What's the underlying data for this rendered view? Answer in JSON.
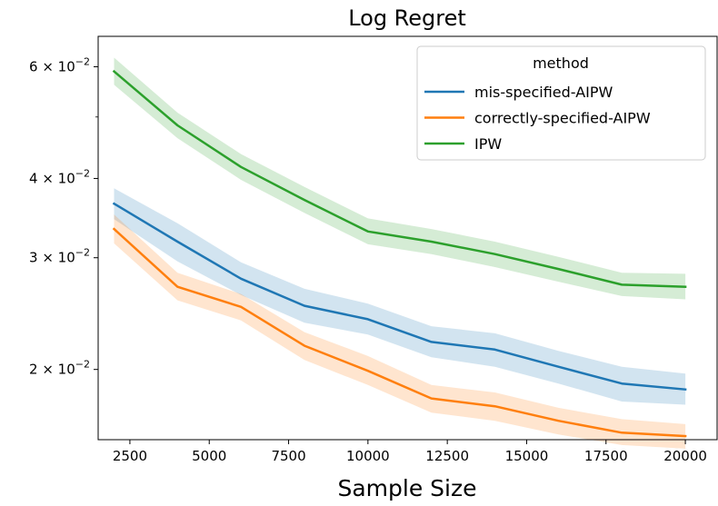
{
  "chart_data": {
    "type": "line",
    "title": "Log Regret",
    "xlabel": "Sample Size",
    "ylabel": "",
    "yscale": "log",
    "xlim": [
      1500,
      21000
    ],
    "ylim": [
      0.0155,
      0.067
    ],
    "x_ticks": [
      2500,
      5000,
      7500,
      10000,
      12500,
      15000,
      17500,
      20000
    ],
    "x_tick_labels": [
      "2500",
      "5000",
      "7500",
      "10000",
      "12500",
      "15000",
      "17500",
      "20000"
    ],
    "y_ticks": [
      {
        "value": 0.02,
        "mantissa": "2",
        "exponent": "−2"
      },
      {
        "value": 0.03,
        "mantissa": "3",
        "exponent": "−2"
      },
      {
        "value": 0.04,
        "mantissa": "4",
        "exponent": "−2"
      },
      {
        "value": 0.06,
        "mantissa": "6",
        "exponent": "−2"
      }
    ],
    "y_minor_ticks": [
      0.05
    ],
    "legend": {
      "title": "method",
      "position": "upper-right"
    },
    "x": [
      2000,
      4000,
      6000,
      8000,
      10000,
      12000,
      14000,
      16000,
      18000,
      20000
    ],
    "series": [
      {
        "name": "mis-specified-AIPW",
        "color": "#1f77b4",
        "values": [
          0.0365,
          0.0318,
          0.0278,
          0.0252,
          0.024,
          0.0221,
          0.0215,
          0.0202,
          0.019,
          0.0186
        ],
        "lower": [
          0.0345,
          0.0296,
          0.0262,
          0.0237,
          0.0227,
          0.0209,
          0.0202,
          0.019,
          0.0178,
          0.0176
        ],
        "upper": [
          0.0386,
          0.034,
          0.0295,
          0.0268,
          0.0254,
          0.0234,
          0.0228,
          0.0214,
          0.0202,
          0.0197
        ]
      },
      {
        "name": "correctly-specified-AIPW",
        "color": "#ff7f0e",
        "values": [
          0.0333,
          0.027,
          0.0251,
          0.0218,
          0.0199,
          0.018,
          0.0175,
          0.0166,
          0.0159,
          0.0157
        ],
        "lower": [
          0.0316,
          0.0257,
          0.0239,
          0.0207,
          0.0189,
          0.0171,
          0.0166,
          0.0158,
          0.0152,
          0.015
        ],
        "upper": [
          0.0351,
          0.0284,
          0.0263,
          0.0229,
          0.021,
          0.0189,
          0.0184,
          0.0174,
          0.0167,
          0.0164
        ]
      },
      {
        "name": "IPW",
        "color": "#2ca02c",
        "values": [
          0.059,
          0.0485,
          0.0417,
          0.037,
          0.033,
          0.0318,
          0.0304,
          0.0288,
          0.0272,
          0.027
        ],
        "lower": [
          0.0562,
          0.0463,
          0.0398,
          0.0353,
          0.0315,
          0.0304,
          0.029,
          0.0275,
          0.0261,
          0.0258
        ],
        "upper": [
          0.062,
          0.0508,
          0.0437,
          0.0388,
          0.0346,
          0.0333,
          0.0318,
          0.0301,
          0.0284,
          0.0283
        ]
      }
    ]
  }
}
